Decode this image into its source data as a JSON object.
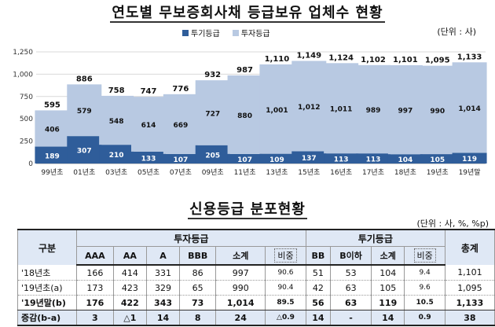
{
  "chart_title": "연도별 무보증회사채 등급보유 업체수 현황",
  "unit": "(단위 : 사)",
  "colors": {
    "spec": "#2f5d9a",
    "inv": "#b8c9e2",
    "grid": "#d9d9d9"
  },
  "chart_data": {
    "type": "bar",
    "stacked": true,
    "categories": [
      "99년초",
      "01년초",
      "03년초",
      "05년초",
      "07년초",
      "09년초",
      "11년초",
      "13년초",
      "15년초",
      "16년초",
      "17년초",
      "18년초",
      "19년초",
      "19년말"
    ],
    "series": [
      {
        "name": "투기등급",
        "values": [
          189,
          307,
          210,
          133,
          107,
          205,
          107,
          109,
          137,
          113,
          113,
          104,
          105,
          119
        ]
      },
      {
        "name": "투자등급",
        "values": [
          406,
          579,
          548,
          614,
          669,
          727,
          880,
          1001,
          1012,
          1011,
          989,
          997,
          990,
          1014
        ]
      }
    ],
    "totals": [
      595,
      886,
      758,
      747,
      776,
      932,
      987,
      1110,
      1149,
      1124,
      1102,
      1101,
      1095,
      1133
    ],
    "y_ticks": [
      "0",
      "250",
      "500",
      "750",
      "1,000",
      "1,250"
    ],
    "ylim": [
      0,
      1250
    ],
    "grid": true,
    "legend_position": "top"
  },
  "table": {
    "title": "신용등급 분포현황",
    "unit": "(단위 : 사, %, %p)",
    "group_header": "구분",
    "inv_header": "투자등급",
    "spec_header": "투기등급",
    "total_header": "총계",
    "sub_headers": [
      "AAA",
      "AA",
      "A",
      "BBB",
      "소계",
      "비중",
      "BB",
      "B이하",
      "소계",
      "비중"
    ],
    "rows": [
      {
        "label": "'18년초",
        "cells": [
          "166",
          "414",
          "331",
          "86",
          "997",
          "90.6",
          "51",
          "53",
          "104",
          "9.4",
          "1,101"
        ]
      },
      {
        "label": "'19년초(a)",
        "cells": [
          "173",
          "423",
          "329",
          "65",
          "990",
          "90.4",
          "42",
          "63",
          "105",
          "9.6",
          "1,095"
        ]
      },
      {
        "label": "'19년말(b)",
        "cells": [
          "176",
          "422",
          "343",
          "73",
          "1,014",
          "89.5",
          "56",
          "63",
          "119",
          "10.5",
          "1,133"
        ]
      },
      {
        "label": "증감(b-a)",
        "cells": [
          "3",
          "△1",
          "14",
          "8",
          "24",
          "△0.9",
          "14",
          "-",
          "14",
          "0.9",
          "38"
        ]
      }
    ]
  }
}
